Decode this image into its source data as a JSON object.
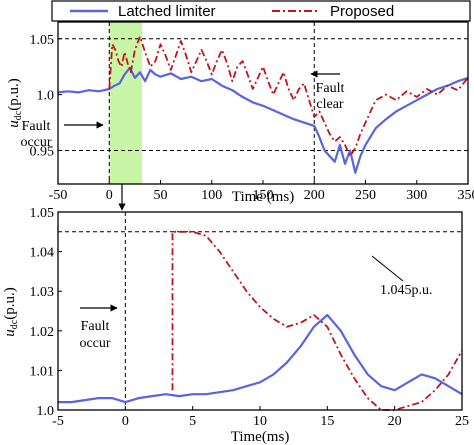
{
  "legend": {
    "items": [
      {
        "label": "Latched limiter",
        "color": "#5a63e0",
        "style": "solid"
      },
      {
        "label": "Proposed",
        "color": "#c0141b",
        "style": "dashdot"
      }
    ]
  },
  "chart_data": [
    {
      "type": "line",
      "xlabel": "Time (ms)",
      "ylabel": "u_dc(p.u.)",
      "ylabel_main": "u",
      "ylabel_sub": "dc",
      "ylabel_unit": "(p.u.)",
      "xlim": [
        -50,
        350
      ],
      "ylim": [
        0.92,
        1.065
      ],
      "xticks": [
        "-50",
        "0",
        "50",
        "100",
        "150",
        "200",
        "250",
        "300",
        "350"
      ],
      "xtick_values": [
        -50,
        0,
        50,
        100,
        150,
        200,
        250,
        300,
        350
      ],
      "yticks": [
        "0.95",
        "1.0",
        "1.05"
      ],
      "ytick_values": [
        0.95,
        1.0,
        1.05
      ],
      "hlines": [
        1.05,
        0.95
      ],
      "vlines": [
        0,
        200
      ],
      "shaded_region": {
        "x0": 0,
        "x1": 32,
        "color": "#c9f5a6"
      },
      "annotations": [
        {
          "lines": [
            "Fault",
            "occur"
          ],
          "points_to_x": 0
        },
        {
          "lines": [
            "Fault",
            "clear"
          ],
          "points_to_x": 200
        }
      ],
      "series": [
        {
          "name": "Latched limiter",
          "color": "#5a63e0",
          "x": [
            -50,
            -40,
            -30,
            -20,
            -10,
            0,
            5,
            10,
            15,
            20,
            25,
            30,
            35,
            40,
            45,
            50,
            60,
            70,
            80,
            90,
            100,
            110,
            120,
            130,
            140,
            150,
            160,
            170,
            180,
            190,
            200,
            205,
            210,
            215,
            220,
            225,
            230,
            235,
            240,
            245,
            250,
            260,
            270,
            280,
            290,
            300,
            310,
            320,
            330,
            340,
            350
          ],
          "y": [
            1.002,
            1.003,
            1.002,
            1.004,
            1.003,
            1.005,
            1.008,
            1.01,
            1.018,
            1.024,
            1.015,
            1.02,
            1.012,
            1.022,
            1.018,
            1.016,
            1.019,
            1.014,
            1.016,
            1.012,
            1.014,
            1.008,
            1.004,
            0.998,
            0.993,
            0.99,
            0.986,
            0.982,
            0.978,
            0.975,
            0.972,
            0.962,
            0.95,
            0.945,
            0.94,
            0.955,
            0.938,
            0.95,
            0.93,
            0.945,
            0.955,
            0.97,
            0.978,
            0.985,
            0.99,
            0.995,
            1.0,
            1.005,
            1.008,
            1.012,
            1.015
          ]
        },
        {
          "name": "Proposed",
          "color": "#c0141b",
          "x": [
            0,
            3,
            6,
            9,
            12,
            15,
            18,
            21,
            25,
            30,
            35,
            40,
            45,
            50,
            55,
            60,
            65,
            70,
            75,
            80,
            85,
            90,
            95,
            100,
            105,
            110,
            115,
            120,
            125,
            130,
            135,
            140,
            145,
            150,
            155,
            160,
            165,
            170,
            175,
            180,
            185,
            190,
            195,
            200,
            205,
            210,
            215,
            220,
            225,
            230,
            235,
            240,
            245,
            250,
            255,
            260,
            270,
            280,
            290,
            300,
            310,
            320,
            330,
            340,
            350
          ],
          "y": [
            1.005,
            1.045,
            1.04,
            1.03,
            1.025,
            1.038,
            1.028,
            1.02,
            1.04,
            1.052,
            1.038,
            1.025,
            1.03,
            1.045,
            1.035,
            1.022,
            1.035,
            1.048,
            1.035,
            1.02,
            1.03,
            1.04,
            1.03,
            1.018,
            1.03,
            1.04,
            1.028,
            1.012,
            1.025,
            1.03,
            1.018,
            1.005,
            1.015,
            1.025,
            1.012,
            1.0,
            1.01,
            1.02,
            1.005,
            0.995,
            1.005,
            1.01,
            0.995,
            0.98,
            0.985,
            0.975,
            0.965,
            0.958,
            0.962,
            0.955,
            0.945,
            0.952,
            0.965,
            0.975,
            0.985,
            0.995,
            1.0,
            0.995,
            1.003,
            0.998,
            1.005,
            1.0,
            1.008,
            1.004,
            1.015
          ]
        }
      ]
    },
    {
      "type": "line",
      "xlabel": "Time(ms)",
      "ylabel": "u_dc(p.u.)",
      "ylabel_main": "u",
      "ylabel_sub": "dc",
      "ylabel_unit": "(p.u.)",
      "xlim": [
        -5,
        25
      ],
      "ylim": [
        1.0,
        1.05
      ],
      "xticks": [
        "-5",
        "0",
        "5",
        "10",
        "15",
        "20",
        "25"
      ],
      "xtick_values": [
        -5,
        0,
        5,
        10,
        15,
        20,
        25
      ],
      "yticks": [
        "1.0",
        "1.01",
        "1.02",
        "1.03",
        "1.04",
        "1.05"
      ],
      "ytick_values": [
        1.0,
        1.01,
        1.02,
        1.03,
        1.04,
        1.05
      ],
      "hlines": [
        1.045
      ],
      "vlines": [
        0
      ],
      "annotations": [
        {
          "lines": [
            "Fault",
            "occur"
          ],
          "points_to_x": 0
        },
        {
          "lines": [
            "1.045p.u."
          ],
          "points_to_x": 19
        }
      ],
      "series": [
        {
          "name": "Latched limiter",
          "color": "#5a63e0",
          "x": [
            -5,
            -4,
            -3,
            -2,
            -1,
            0,
            1,
            2,
            3,
            4,
            5,
            6,
            7,
            8,
            9,
            10,
            11,
            12,
            13,
            14,
            15,
            16,
            17,
            18,
            19,
            20,
            21,
            22,
            23,
            24,
            25
          ],
          "y": [
            1.002,
            1.002,
            1.0025,
            1.003,
            1.003,
            1.002,
            1.003,
            1.0035,
            1.004,
            1.0035,
            1.004,
            1.004,
            1.0045,
            1.005,
            1.006,
            1.007,
            1.009,
            1.012,
            1.016,
            1.021,
            1.024,
            1.02,
            1.014,
            1.009,
            1.006,
            1.005,
            1.007,
            1.009,
            1.008,
            1.006,
            1.004
          ]
        },
        {
          "name": "Proposed",
          "color": "#c0141b",
          "x": [
            3.5,
            3.5,
            4,
            5,
            6,
            7,
            8,
            9,
            10,
            11,
            12,
            13,
            14,
            15,
            16,
            17,
            18,
            19,
            20,
            21,
            22,
            23,
            24,
            25
          ],
          "y": [
            1.005,
            1.045,
            1.045,
            1.045,
            1.044,
            1.04,
            1.035,
            1.03,
            1.026,
            1.023,
            1.021,
            1.022,
            1.024,
            1.021,
            1.014,
            1.008,
            1.003,
            1.0,
            1.0,
            1.001,
            1.002,
            1.005,
            1.009,
            1.015
          ]
        }
      ]
    }
  ]
}
